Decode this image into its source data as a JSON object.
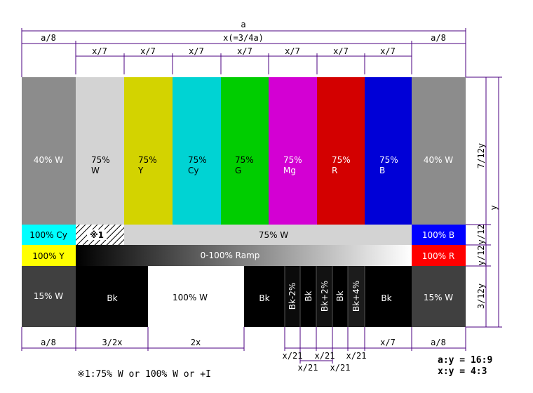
{
  "colors": {
    "grey40": "#8c8c8c",
    "white75": "#d3d3d3",
    "yellow75": "#d3d300",
    "cyan75": "#00d3d3",
    "green75": "#00cd00",
    "magenta75": "#d300d3",
    "red75": "#d30000",
    "blue75": "#0000d7",
    "cyan100": "#00ffff",
    "yellow100": "#ffff00",
    "blue100": "#0000ff",
    "red100": "#ff0000",
    "grey15": "#404040",
    "black": "#000000",
    "white100": "#ffffff",
    "dim_line": "#4b0082"
  },
  "top_dims": {
    "total": "a",
    "side_left": "a/8",
    "center": "x(=3/4a)",
    "side_right": "a/8",
    "bar_unit": "x/7"
  },
  "bars": [
    {
      "line1": "40% W",
      "line2": ""
    },
    {
      "line1": "75%",
      "line2": "W"
    },
    {
      "line1": "75%",
      "line2": "Y"
    },
    {
      "line1": "75%",
      "line2": "Cy"
    },
    {
      "line1": "75%",
      "line2": "G"
    },
    {
      "line1": "75%",
      "line2": "Mg"
    },
    {
      "line1": "75%",
      "line2": "R"
    },
    {
      "line1": "75%",
      "line2": "B"
    },
    {
      "line1": "40% W",
      "line2": ""
    }
  ],
  "row2": {
    "left": "100% Cy",
    "note": "※1",
    "center": "75% W",
    "right": "100% B"
  },
  "row3": {
    "left": "100% Y",
    "ramp": "0-100% Ramp",
    "right": "100% R"
  },
  "row4": {
    "left": "15% W",
    "bk1": "Bk",
    "white": "100% W",
    "bk2": "Bk",
    "pluge": [
      "Bk-2%",
      "Bk",
      "Bk+2%",
      "Bk",
      "Bk+4%"
    ],
    "bk3": "Bk",
    "right": "15% W"
  },
  "right_dims": {
    "y": "y",
    "top": "7/12y",
    "mid1": "y/12",
    "mid2": "y/12",
    "bottom": "3/12y"
  },
  "bottom_dims": {
    "left": "a/8",
    "b1": "3/2x",
    "b2": "2x",
    "p_upper": [
      "x/21",
      "x/21",
      "x/21"
    ],
    "p_lower": [
      "x/21",
      "x/21"
    ],
    "b3": "x/7",
    "right": "a/8"
  },
  "footnote": "※1:75% W or 100% W or +I",
  "ratios": [
    "a:y = 16:9",
    "x:y = 4:3"
  ]
}
